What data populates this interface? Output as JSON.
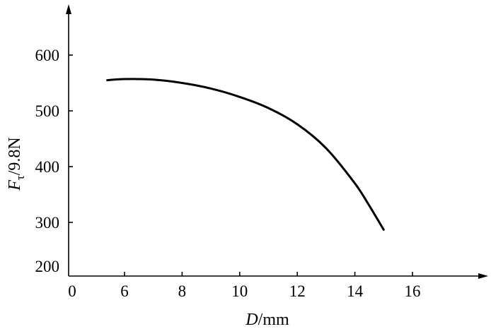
{
  "chart_data": {
    "type": "line",
    "title": "",
    "x_axis": {
      "label_var": "D",
      "label_unit": "/mm",
      "origin_label": "0",
      "ticks": [
        6,
        8,
        10,
        12,
        14,
        16
      ],
      "tick_labels": [
        "6",
        "8",
        "10",
        "12",
        "14",
        "16"
      ]
    },
    "y_axis": {
      "label_var": "F",
      "label_sub": "τ",
      "label_unit": "/9.8N",
      "ticks": [
        200,
        300,
        400,
        500,
        600
      ],
      "tick_labels": [
        "200",
        "300",
        "400",
        "500",
        "600"
      ]
    },
    "grid": false,
    "legend": "none",
    "series": [
      {
        "x": [
          5.4,
          6.0,
          7.0,
          8.0,
          9.0,
          10.0,
          11.0,
          12.0,
          13.0,
          14.0,
          14.5,
          15.0
        ],
        "y": [
          555,
          557,
          556,
          550,
          540,
          525,
          505,
          476,
          433,
          370,
          330,
          287
        ]
      }
    ],
    "line_color": "#000000"
  }
}
